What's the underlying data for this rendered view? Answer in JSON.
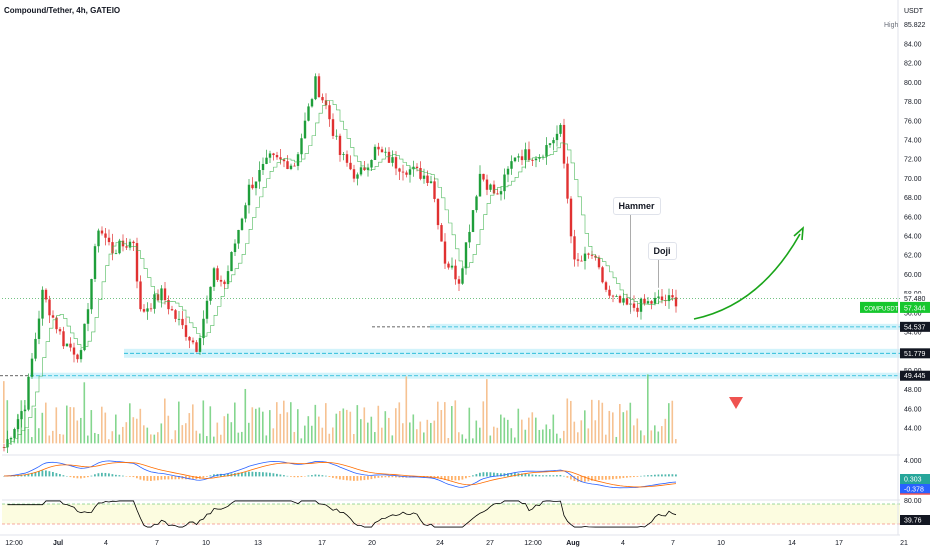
{
  "title": "Compound/Tether, 4h, GATEIO",
  "currency": "USDT",
  "high_label": "High",
  "high_value": "85.822",
  "colors": {
    "up": "#1e9e3a",
    "down": "#e03131",
    "ma": "#3bb34a",
    "zone": "#d2f3fb",
    "zone_line": "#19b6d6",
    "macd_fast": "#2962ff",
    "macd_slow": "#ff6d00",
    "rsi": "#000000",
    "price_tag": "#16c72e",
    "arrow": "#1aa51a",
    "triangle": "#ef5350"
  },
  "chart_data": [
    {
      "type": "candlestick",
      "title": "Compound/Tether, 4h, GATEIO",
      "ylim": [
        41.5,
        86.5
      ],
      "yticks": [
        44,
        46,
        48,
        50,
        52,
        54,
        56,
        58,
        60,
        62,
        64,
        66,
        68,
        70,
        72,
        74,
        76,
        78,
        80,
        82,
        84
      ],
      "x_ticks": [
        "12:00",
        "Jul",
        "4",
        "7",
        "10",
        "13",
        "17",
        "20",
        "24",
        "27",
        "12:00",
        "Aug",
        "4",
        "7",
        "10",
        "14",
        "17",
        "21"
      ],
      "bars_total": 193,
      "start_price": 42.0,
      "anchors": [
        [
          0,
          42.0
        ],
        [
          6,
          46.5
        ],
        [
          11,
          58.0
        ],
        [
          17,
          53.0
        ],
        [
          22,
          51.5
        ],
        [
          27,
          65.0
        ],
        [
          31,
          62.5
        ],
        [
          37,
          63.5
        ],
        [
          39,
          56.0
        ],
        [
          45,
          58.0
        ],
        [
          49,
          55.5
        ],
        [
          55,
          52.5
        ],
        [
          60,
          60.0
        ],
        [
          63,
          59.0
        ],
        [
          70,
          69.0
        ],
        [
          76,
          72.0
        ],
        [
          83,
          71.5
        ],
        [
          89,
          80.0
        ],
        [
          92,
          77.5
        ],
        [
          96,
          72.5
        ],
        [
          101,
          70.0
        ],
        [
          106,
          73.0
        ],
        [
          112,
          71.5
        ],
        [
          122,
          70.0
        ],
        [
          126,
          61.5
        ],
        [
          130,
          59.5
        ],
        [
          136,
          70.5
        ],
        [
          141,
          68.0
        ],
        [
          146,
          72.5
        ],
        [
          153,
          72.5
        ],
        [
          159,
          75.0
        ],
        [
          163,
          61.0
        ],
        [
          168,
          62.0
        ],
        [
          173,
          57.5
        ],
        [
          179,
          56.5
        ],
        [
          187,
          57.3
        ],
        [
          190,
          57.3
        ]
      ],
      "volume": {
        "baseline_price": 42.4,
        "ylim": [
          0,
          100
        ]
      },
      "moving_average": {
        "type": "step",
        "source": "close"
      },
      "levels": [
        {
          "label": "57.480",
          "value": 57.48,
          "kind": "price"
        },
        {
          "label": "54.537",
          "value": 54.537,
          "kind": "support"
        },
        {
          "label": "51.779",
          "value": 51.779,
          "kind": "support"
        },
        {
          "label": "49.445",
          "value": 49.445,
          "kind": "support"
        }
      ],
      "axis_tags": {
        "compusdt": "COMPUSDT",
        "compusdt_price": "57.344"
      },
      "annotations": [
        {
          "text": "Hammer",
          "bar": 179
        },
        {
          "text": "Doji",
          "bar": 187
        }
      ],
      "price_labels": {
        "top": "57.480",
        "current": "57.344"
      }
    },
    {
      "type": "line",
      "name": "macd",
      "ylim": [
        -6,
        6
      ],
      "labels": {
        "zero": "4.000",
        "value": "0.303",
        "signal": "-0.378"
      }
    },
    {
      "type": "line",
      "name": "rsi",
      "ylim": [
        20,
        80
      ],
      "labels": {
        "upper": "80.00",
        "value": "39.76"
      }
    }
  ]
}
